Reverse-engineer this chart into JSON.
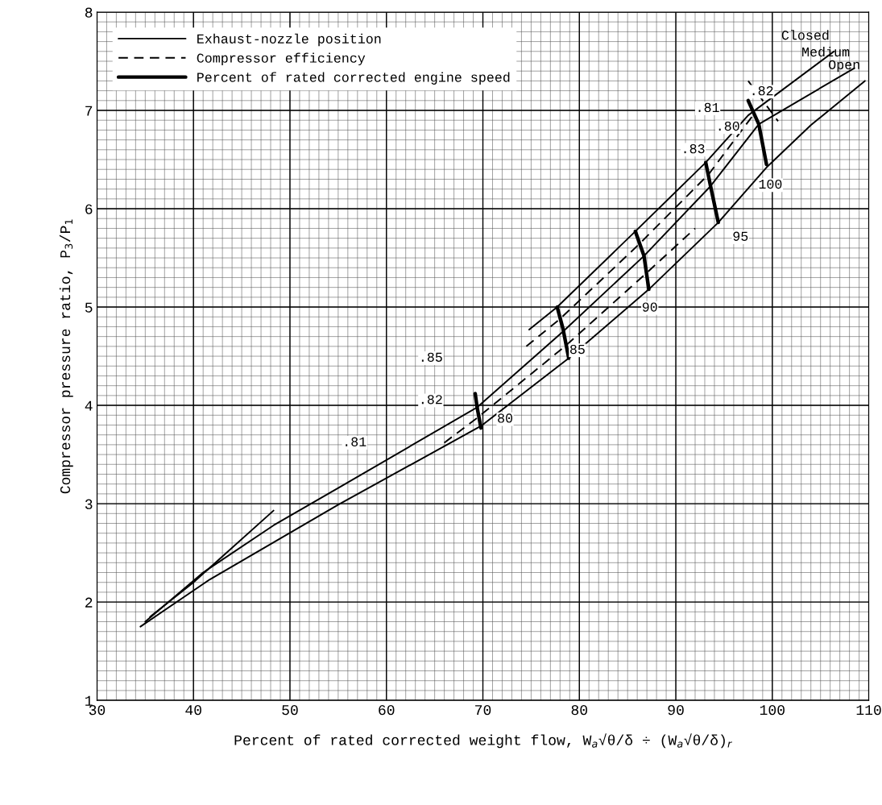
{
  "chart_data": {
    "type": "line",
    "xlabel": "Percent of rated corrected weight flow, W$_{a}$√θ/δ ÷ (W$_{a}$√θ/δ)$_{r}$",
    "ylabel": "Compressor pressure ratio, P$_{3}$/P$_{1}$",
    "xlim": [
      30,
      110
    ],
    "xticks": [
      30,
      40,
      50,
      60,
      70,
      80,
      90,
      100,
      110
    ],
    "ylim": [
      1,
      8
    ],
    "yticks": [
      1,
      2,
      3,
      4,
      5,
      6,
      7,
      8
    ],
    "grid": true,
    "legend": "top left",
    "marker": "none",
    "series": [
      {
        "name": "Exhaust-nozzle position",
        "color": "#000000",
        "line_style": "solid",
        "x": [
          35.5,
          40,
          48.3
        ],
        "values": [
          1.85,
          2.2,
          2.93
        ]
      },
      {
        "color": "#000000",
        "line_style": "solid",
        "x": [
          74.8,
          77.7,
          85.8,
          93.1,
          97.5,
          106.4
        ],
        "values": [
          4.77,
          5.0,
          5.77,
          6.47,
          6.95,
          7.6
        ]
      },
      {
        "color": "#000000",
        "line_style": "solid",
        "x": [
          35,
          41,
          48.3,
          55,
          69.4,
          78.3,
          86.7,
          93.6,
          98.6,
          108.5
        ],
        "values": [
          1.8,
          2.3,
          2.78,
          3.16,
          3.98,
          4.75,
          5.52,
          6.23,
          6.86,
          7.43
        ]
      },
      {
        "color": "#000000",
        "line_style": "solid",
        "x": [
          34.5,
          41.7,
          55,
          69.8,
          78.9,
          87.2,
          94.4,
          99.4,
          104,
          109.6
        ],
        "values": [
          1.75,
          2.23,
          2.99,
          3.79,
          4.48,
          5.18,
          5.86,
          6.42,
          6.85,
          7.3
        ]
      },
      {
        "name": "Compressor efficiency",
        "color": "#000000",
        "line_style": "dashed",
        "x": [
          66,
          69.5,
          78.5,
          87,
          92
        ],
        "values": [
          3.62,
          3.88,
          4.6,
          5.35,
          5.8
        ]
      },
      {
        "color": "#000000",
        "line_style": "dashed",
        "x": [
          74.5,
          78,
          86.2,
          93.4,
          98
        ],
        "values": [
          4.6,
          4.88,
          5.64,
          6.35,
          6.95
        ]
      },
      {
        "color": "#000000",
        "line_style": "dashed",
        "x": [
          97.5,
          100.6
        ],
        "values": [
          7.3,
          6.89
        ]
      },
      {
        "name": "Percent of rated corrected engine speed",
        "color": "#000000",
        "line_style": "solid",
        "x": [
          69.2,
          69.4,
          69.8
        ],
        "values": [
          4.12,
          3.98,
          3.77
        ]
      },
      {
        "color": "#000000",
        "line_style": "solid",
        "x": [
          77.7,
          78.3,
          78.9
        ],
        "values": [
          5.0,
          4.78,
          4.48
        ]
      },
      {
        "color": "#000000",
        "line_style": "solid",
        "x": [
          85.8,
          86.7,
          87.2
        ],
        "values": [
          5.77,
          5.52,
          5.18
        ]
      },
      {
        "color": "#000000",
        "line_style": "solid",
        "x": [
          93.1,
          93.6,
          94.4
        ],
        "values": [
          6.47,
          6.23,
          5.86
        ]
      },
      {
        "color": "#000000",
        "line_style": "solid",
        "x": [
          97.5,
          98.6,
          99.4
        ],
        "values": [
          7.1,
          6.86,
          6.45
        ]
      }
    ],
    "annotations": [
      {
        "text": "Closed",
        "x": 106.4,
        "y": 7.6
      },
      {
        "text": "Medium",
        "x": 108.5,
        "y": 7.43
      },
      {
        "text": "Open",
        "x": 109.6,
        "y": 7.3
      },
      {
        "text": "80",
        "x": 72.3,
        "y": 3.86
      },
      {
        "text": "85",
        "x": 79.8,
        "y": 4.56
      },
      {
        "text": "90",
        "x": 87.3,
        "y": 4.99
      },
      {
        "text": "95",
        "x": 96.7,
        "y": 5.71
      },
      {
        "text": "100",
        "x": 99.8,
        "y": 6.24
      },
      {
        "text": ".81",
        "x": 56.7,
        "y": 3.62
      },
      {
        "text": ".82",
        "x": 64.6,
        "y": 4.05
      },
      {
        "text": ".85",
        "x": 64.6,
        "y": 4.48
      },
      {
        "text": ".83",
        "x": 91.8,
        "y": 6.6
      },
      {
        "text": ".80",
        "x": 95.4,
        "y": 6.83
      },
      {
        "text": ".81",
        "x": 93.3,
        "y": 7.02
      },
      {
        "text": ".82",
        "x": 98.9,
        "y": 7.19
      }
    ]
  }
}
